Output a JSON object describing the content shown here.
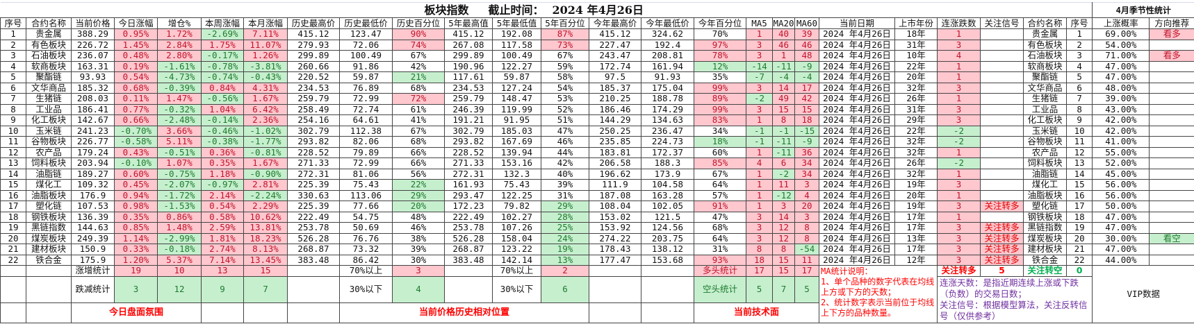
{
  "title": {
    "main": "板块指数",
    "cutoff_label": "截止时间：",
    "cutoff_date": "2024 年4月26日",
    "season_title": "4月季节性统计"
  },
  "colors": {
    "up_bg": "#ffc7ce",
    "up_text": "#c0142b",
    "down_bg": "#c6efce",
    "down_text": "#1e7b2e",
    "note_red": "#ff0000",
    "note_purple": "#7030a0"
  },
  "headers": [
    "序号",
    "合约名称",
    "当前价格",
    "今日涨幅",
    "增仓%",
    "本周涨幅",
    "本月涨幅",
    "历史最高价",
    "历史最低价",
    "历史百分位",
    "5年最高值",
    "5年最低值",
    "5年百分位",
    "今年最高价",
    "今年最低价",
    "今年百分位",
    "MA5",
    "MA20",
    "MA60",
    "当前日期",
    "上市年份",
    "连涨跌数",
    "关注信号",
    "合约名称",
    "序号",
    "上涨概率",
    "方向推荐"
  ],
  "rows": [
    [
      "1",
      "贵金属",
      "388.29",
      "0.95%",
      "1.72%",
      "-2.69%",
      "7.11%",
      "415.12",
      "123.47",
      "90%",
      "415.12",
      "192.08",
      "87%",
      "415.12",
      "324.62",
      "70%",
      "1",
      "40",
      "39",
      "2024 年4月26日",
      "18年",
      "1",
      "",
      "贵金属",
      "1",
      "69.00%",
      "看多"
    ],
    [
      "2",
      "有色板块",
      "226.72",
      "1.45%",
      "2.84%",
      "1.75%",
      "11.07%",
      "279.93",
      "72.06",
      "74%",
      "267.08",
      "117.58",
      "73%",
      "227.47",
      "192.4",
      "97%",
      "3",
      "46",
      "46",
      "2024 年4月26日",
      "31年",
      "3",
      "",
      "有色板块",
      "2",
      "54.00%",
      ""
    ],
    [
      "3",
      "石油板块",
      "236.07",
      "0.48%",
      "2.80%",
      "-0.17%",
      "1.26%",
      "299.89",
      "100.49",
      "67%",
      "299.89",
      "100.49",
      "67%",
      "243.47",
      "208.81",
      "78%",
      "3",
      "1",
      "48",
      "2024 年4月26日",
      "10年",
      "4",
      "",
      "石油板块",
      "3",
      "71.00%",
      "看多"
    ],
    [
      "4",
      "软商板块",
      "163.31",
      "0.19%",
      "-1.61%",
      "-0.78%",
      "-3.81%",
      "260.66",
      "91.86",
      "42%",
      "190.96",
      "122.27",
      "59%",
      "172.74",
      "161.94",
      "12%",
      "-14",
      "-11",
      "-9",
      "2024 年4月26日",
      "22年",
      "1",
      "",
      "软商板块",
      "4",
      "47.00%",
      ""
    ],
    [
      "5",
      "聚酯链",
      "93.93",
      "0.54%",
      "-4.73%",
      "-0.74%",
      "-0.43%",
      "220.52",
      "59.87",
      "21%",
      "117.61",
      "59.87",
      "58%",
      "97.5",
      "91.93",
      "35%",
      "-7",
      "-4",
      "-4",
      "2024 年4月26日",
      "20年",
      "1",
      "",
      "聚酯链",
      "5",
      "47.00%",
      ""
    ],
    [
      "6",
      "文华商品",
      "185.32",
      "0.68%",
      "-0.39%",
      "0.84%",
      "4.31%",
      "234.53",
      "76.89",
      "68%",
      "234.53",
      "127.24",
      "54%",
      "185.37",
      "175.04",
      "99%",
      "3",
      "14",
      "17",
      "2024 年4月26日",
      "32年",
      "3",
      "",
      "文华商品",
      "6",
      "48.00%",
      ""
    ],
    [
      "7",
      "生猪链",
      "208.03",
      "0.11%",
      "1.47%",
      "-0.56%",
      "1.67%",
      "259.79",
      "72.99",
      "72%",
      "259.79",
      "148.47",
      "53%",
      "210.25",
      "188.78",
      "89%",
      "-2",
      "49",
      "42",
      "2024 年4月26日",
      "26年",
      "1",
      "",
      "生猪链",
      "7",
      "39.00%",
      ""
    ],
    [
      "8",
      "工业品",
      "186.41",
      "0.77%",
      "-0.32%",
      "1.04%",
      "6.42%",
      "258.49",
      "72.74",
      "61%",
      "246.39",
      "119.99",
      "52%",
      "186.46",
      "174.29",
      "99%",
      "3",
      "15",
      "15",
      "2024 年4月26日",
      "31年",
      "3",
      "",
      "工业品",
      "8",
      "43.00%",
      ""
    ],
    [
      "9",
      "化工板块",
      "142.67",
      "0.66%",
      "-2.48%",
      "-0.14%",
      "2.36%",
      "254.16",
      "64.61",
      "41%",
      "191.21",
      "91.95",
      "51%",
      "144.29",
      "134.63",
      "83%",
      "1",
      "8",
      "18",
      "2024 年4月26日",
      "29年",
      "3",
      "",
      "化工板块",
      "9",
      "42.00%",
      ""
    ],
    [
      "10",
      "玉米链",
      "241.23",
      "-0.70%",
      "3.66%",
      "-0.46%",
      "-1.02%",
      "302.79",
      "112.38",
      "67%",
      "302.79",
      "185.03",
      "47%",
      "250.25",
      "236.47",
      "34%",
      "-1",
      "-1",
      "-15",
      "2024 年4月26日",
      "22年",
      "-2",
      "",
      "玉米链",
      "10",
      "42.00%",
      ""
    ],
    [
      "11",
      "谷物板块",
      "226.77",
      "-0.58%",
      "5.11%",
      "-0.38%",
      "-1.77%",
      "293.82",
      "82.06",
      "68%",
      "293.82",
      "167.69",
      "46%",
      "235.85",
      "224.73",
      "18%",
      "-1",
      "-11",
      "-9",
      "2024 年4月26日",
      "32年",
      "-2",
      "",
      "谷物板块",
      "11",
      "41.00%",
      ""
    ],
    [
      "12",
      "农产品",
      "179.24",
      "0.43%",
      "-0.51%",
      "0.36%",
      "-0.81%",
      "228.52",
      "79.89",
      "66%",
      "228.52",
      "139.94",
      "44%",
      "183.81",
      "172.37",
      "60%",
      "1",
      "-11",
      "36",
      "2024 年4月26日",
      "32年",
      "1",
      "",
      "农产品",
      "12",
      "55.00%",
      ""
    ],
    [
      "13",
      "饲料板块",
      "203.94",
      "-0.10%",
      "1.07%",
      "0.35%",
      "1.67%",
      "271.33",
      "72.99",
      "66%",
      "271.33",
      "153.16",
      "42%",
      "206.58",
      "188.3",
      "85%",
      "4",
      "6",
      "34",
      "2024 年4月26日",
      "26年",
      "-2",
      "",
      "饲料板块",
      "13",
      "52.00%",
      ""
    ],
    [
      "14",
      "油脂链",
      "189.27",
      "0.60%",
      "-0.75%",
      "1.18%",
      "-0.90%",
      "272.31",
      "81.06",
      "56%",
      "272.31",
      "132.3",
      "40%",
      "196.62",
      "173.9",
      "67%",
      "1",
      "-2",
      "34",
      "2024 年4月26日",
      "32年",
      "1",
      "",
      "油脂链",
      "14",
      "45.00%",
      ""
    ],
    [
      "15",
      "煤化工",
      "109.32",
      "0.45%",
      "-2.07%",
      "-0.97%",
      "2.81%",
      "225.39",
      "75.43",
      "22%",
      "161.93",
      "75.43",
      "39%",
      "111.9",
      "104.58",
      "64%",
      "1",
      "11",
      "3",
      "2024 年4月26日",
      "19年",
      "3",
      "",
      "煤化工",
      "15",
      "56.00%",
      ""
    ],
    [
      "16",
      "油脂板块",
      "176.9",
      "0.94%",
      "-1.72%",
      "2.14%",
      "-2.24%",
      "330.63",
      "113.06",
      "29%",
      "293.47",
      "122.25",
      "31%",
      "187.08",
      "163.28",
      "57%",
      "1",
      "-12",
      "4",
      "2024 年4月26日",
      "20年",
      "1",
      "",
      "油脂板块",
      "16",
      "56.00%",
      ""
    ],
    [
      "17",
      "塑化链",
      "107.53",
      "0.98%",
      "-1.53%",
      "0.54%",
      "2.29%",
      "225.39",
      "77.66",
      "20%",
      "172.23",
      "79.82",
      "29%",
      "108.04",
      "102.05",
      "91%",
      "1",
      "3",
      "20",
      "2024 年4月26日",
      "19年",
      "3",
      "关注转多",
      "塑化链",
      "17",
      "50.00%",
      ""
    ],
    [
      "18",
      "钢铁板块",
      "136.39",
      "0.35%",
      "0.86%",
      "0.58%",
      "10.62%",
      "222.49",
      "54.75",
      "48%",
      "222.49",
      "102.27",
      "28%",
      "153.02",
      "121.5",
      "47%",
      "3",
      "14",
      "3",
      "2024 年4月26日",
      "17年",
      "1",
      "",
      "钢铁板块",
      "18",
      "47.00%",
      ""
    ],
    [
      "19",
      "黑链指数",
      "144.63",
      "0.85%",
      "1.48%",
      "2.59%",
      "13.81%",
      "253.78",
      "50.69",
      "46%",
      "253.78",
      "107.26",
      "25%",
      "153.92",
      "124.56",
      "68%",
      "3",
      "12",
      "8",
      "2024 年4月26日",
      "17年",
      "3",
      "关注转多",
      "黑链指数",
      "19",
      "47.00%",
      ""
    ],
    [
      "20",
      "煤炭板块",
      "249.39",
      "1.14%",
      "-2.99%",
      "1.81%",
      "18.23%",
      "526.28",
      "76.76",
      "38%",
      "526.28",
      "158.04",
      "24%",
      "274.22",
      "203.75",
      "64%",
      "3",
      "12",
      "8",
      "2024 年4月26日",
      "13年",
      "3",
      "关注转多",
      "煤炭板块",
      "20",
      "30.00%",
      "看空"
    ],
    [
      "21",
      "建材板块",
      "150.9",
      "0.33%",
      "-0.18%",
      "2.74%",
      "8.13%",
      "268.87",
      "73.32",
      "39%",
      "268.87",
      "123.22",
      "19%",
      "178.43",
      "138.12",
      "31%",
      "8",
      "8",
      "-54",
      "2024 年4月26日",
      "17年",
      "3",
      "关注转多",
      "建材板块",
      "21",
      "47.00%",
      ""
    ],
    [
      "22",
      "铁合金",
      "175.9",
      "1.20%",
      "5.37%",
      "7.14%",
      "13.45%",
      "383.48",
      "86.42",
      "30%",
      "383.48",
      "142.14",
      "13%",
      "177.47",
      "153.68",
      "93%",
      "18",
      "15",
      "11",
      "2024 年4月26日",
      "12年",
      "3",
      "关注转多",
      "铁合金",
      "22",
      "44.00%",
      ""
    ]
  ],
  "summary": {
    "up_label": "涨增统计",
    "up_counts": [
      "19",
      "10",
      "13",
      "15"
    ],
    "down_label": "跌减统计",
    "down_counts": [
      "3",
      "12",
      "9",
      "7"
    ],
    "hist_above_label": "70%以上",
    "hist_above": "3",
    "hist_below_label": "30%以下",
    "hist_below": "4",
    "y5_above_label": "70%以上",
    "y5_above": "2",
    "y5_below_label": "30%以下",
    "y5_below": "6",
    "bull_label": "多头统计",
    "bull_counts": [
      "17",
      "15",
      "17"
    ],
    "bear_label": "空头统计",
    "bear_counts": [
      "5",
      "7",
      "5"
    ],
    "ma_note": [
      "MA统计说明：",
      "1、单个品种的数字代表在均线上方或下方的天数；",
      "2、统计数字表示当前位于均线上下方的品种数量。"
    ],
    "turn_long_label": "关注转多",
    "turn_long_count": "5",
    "turn_short_label": "关注转空",
    "turn_short_count": "0",
    "legend_note": [
      "连涨天数：是指近期连续上涨或下跌（负数）的交易日数；",
      "关注信号：根据模型算法，关注反转信号（仅供参考）"
    ],
    "vip": "VIP数据",
    "section_today": "今日盘面氛围",
    "section_position": "当前价格历史相对位置",
    "section_tech": "当前技术面"
  }
}
